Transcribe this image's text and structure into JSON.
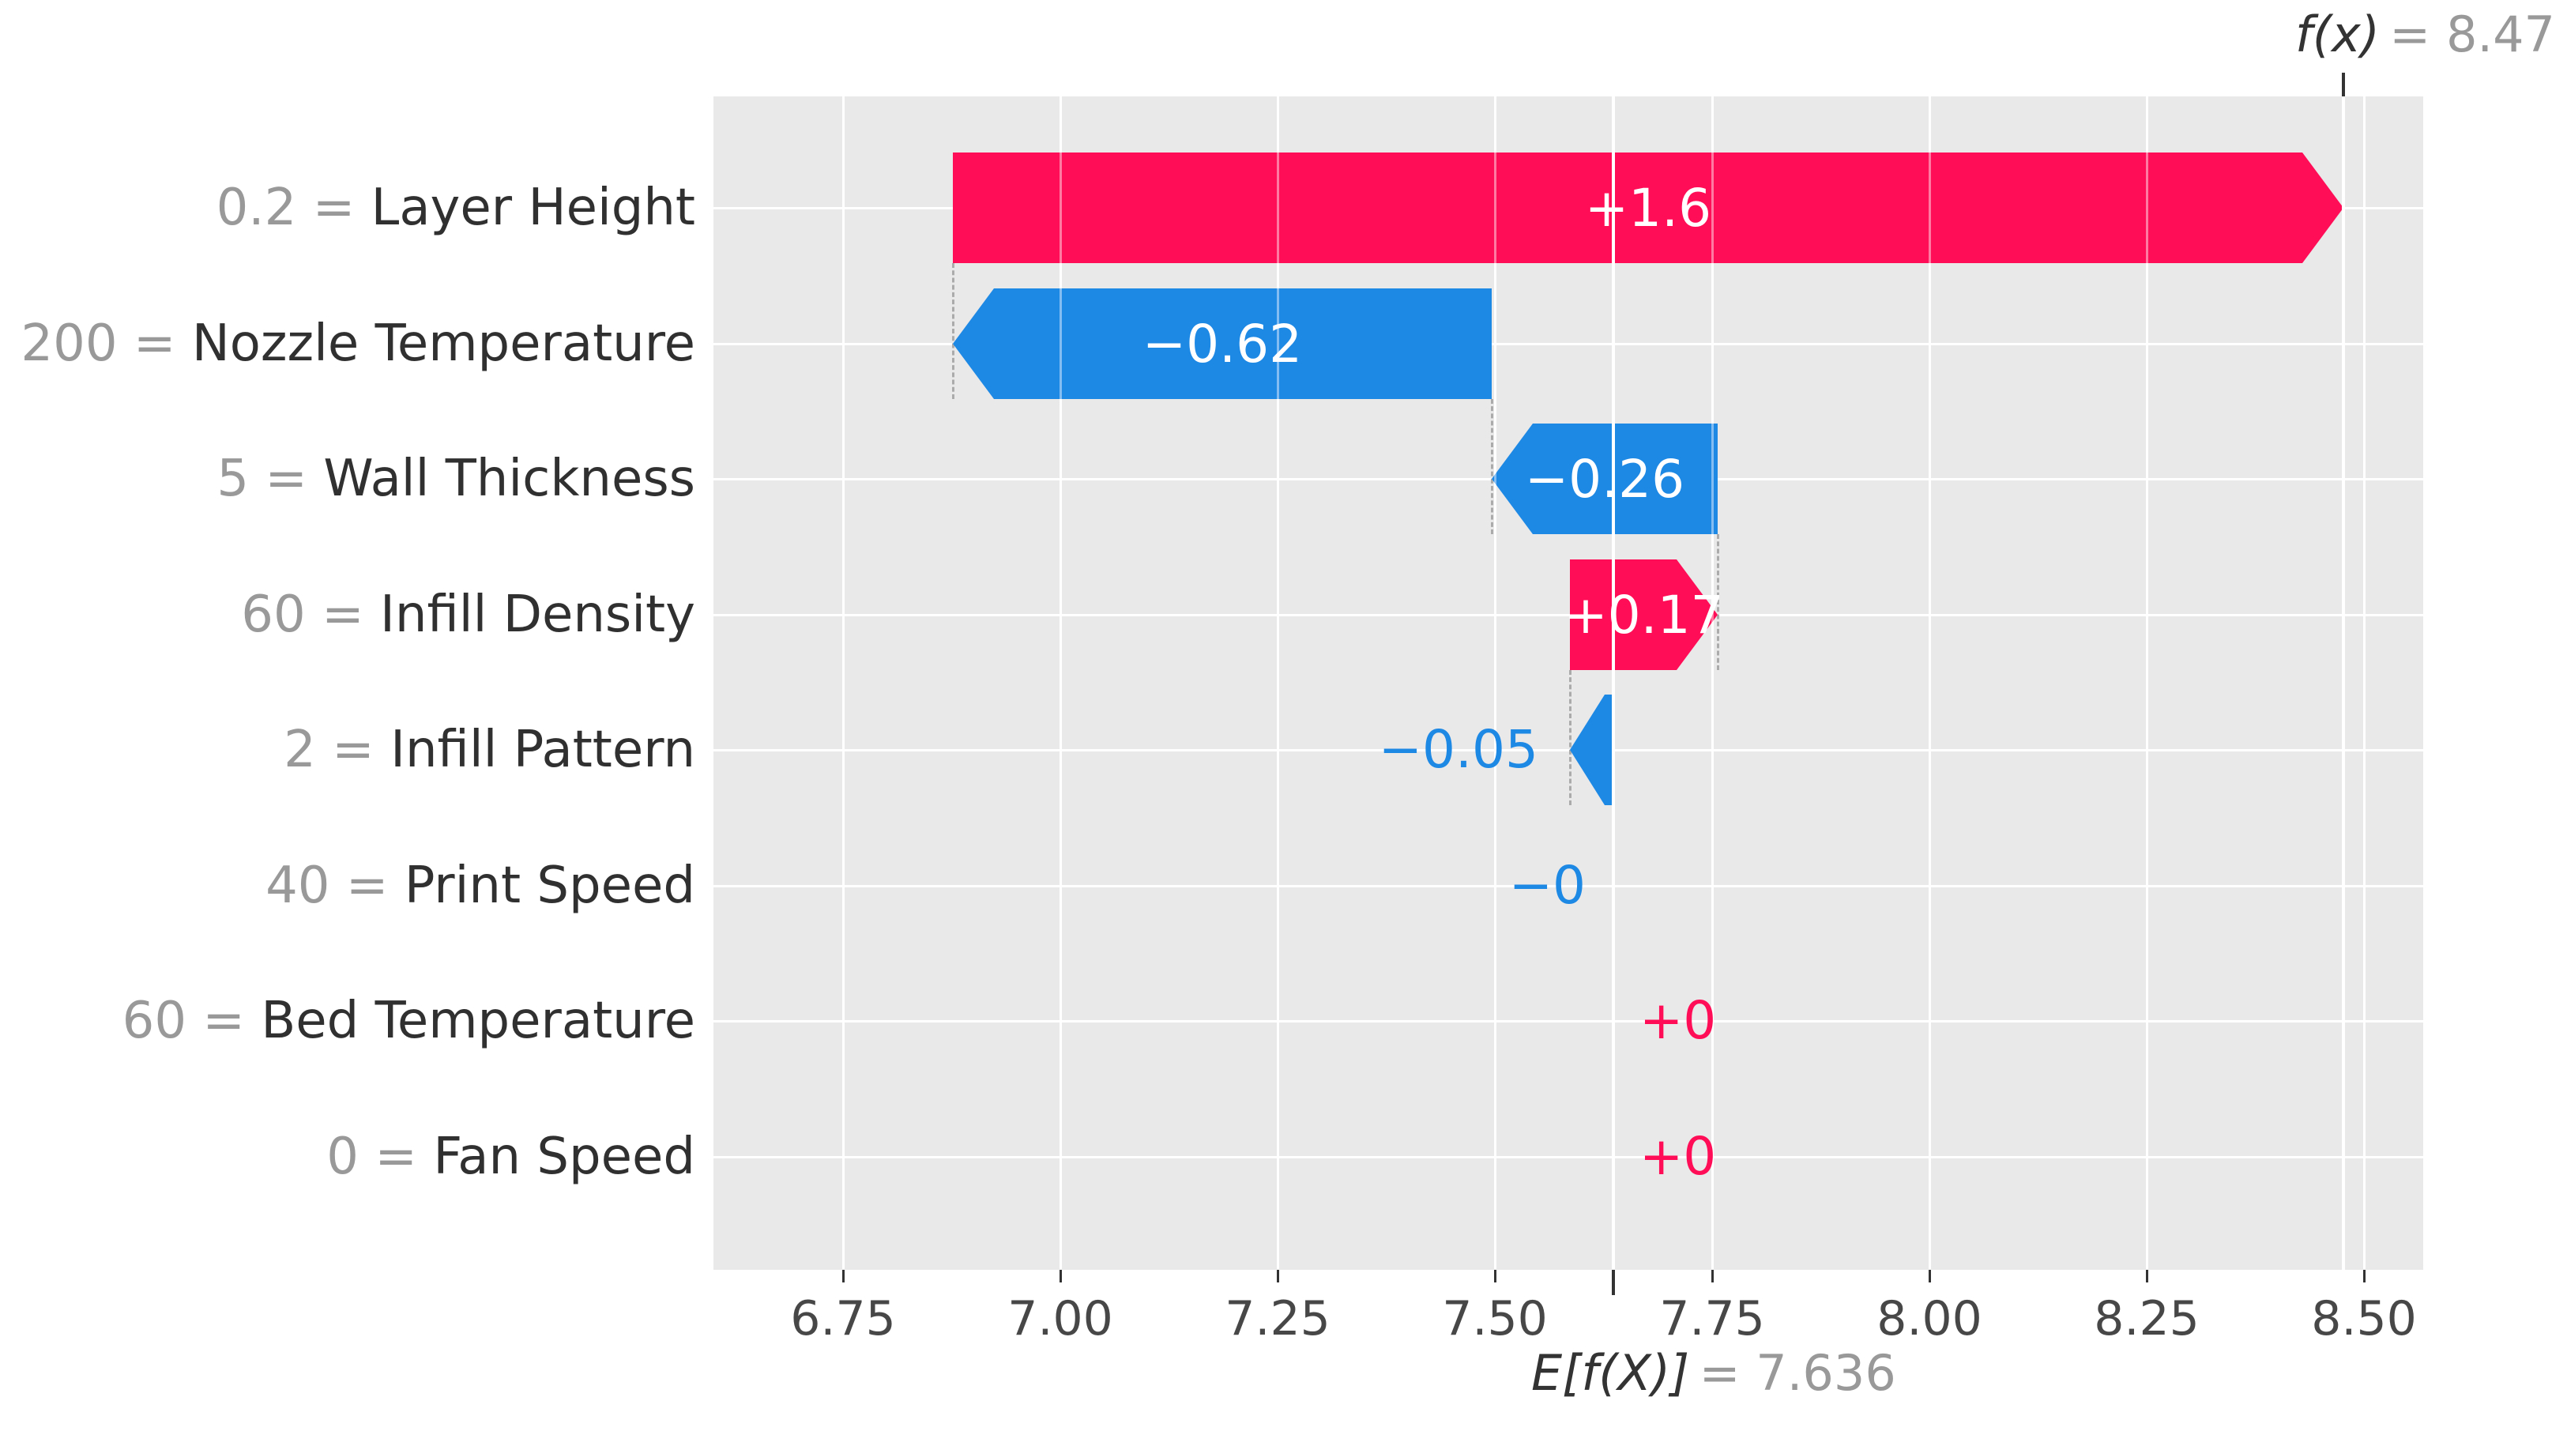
{
  "chart_data": {
    "type": "waterfall",
    "description": "SHAP waterfall plot of feature contributions",
    "fx_value": 8.47,
    "base_value": 7.636,
    "fx_annotation": {
      "lhs": "f(x)",
      "rhs": "= 8.47"
    },
    "base_annotation": {
      "lhs": "E[f(X)]",
      "rhs": "= 7.636"
    },
    "separator": " = ",
    "x_ticks": [
      6.75,
      7.0,
      7.25,
      7.5,
      7.75,
      8.0,
      8.25,
      8.5
    ],
    "x_tick_labels": [
      "6.75",
      "7.00",
      "7.25",
      "7.50",
      "7.75",
      "8.00",
      "8.25",
      "8.50"
    ],
    "grid": true,
    "legend": false,
    "rows": [
      {
        "feature": "Layer Height",
        "value_label": "0.2",
        "contribution": 1.6,
        "contribution_label": "+1.6",
        "direction": "positive"
      },
      {
        "feature": "Nozzle Temperature",
        "value_label": "200",
        "contribution": -0.62,
        "contribution_label": "−0.62",
        "direction": "negative"
      },
      {
        "feature": "Wall Thickness",
        "value_label": "5",
        "contribution": -0.26,
        "contribution_label": "−0.26",
        "direction": "negative"
      },
      {
        "feature": "Infill Density",
        "value_label": "60",
        "contribution": 0.17,
        "contribution_label": "+0.17",
        "direction": "positive"
      },
      {
        "feature": "Infill Pattern",
        "value_label": "2",
        "contribution": -0.05,
        "contribution_label": "−0.05",
        "direction": "negative"
      },
      {
        "feature": "Print Speed",
        "value_label": "40",
        "contribution": 0.0,
        "contribution_label": "−0",
        "direction": "negative"
      },
      {
        "feature": "Bed Temperature",
        "value_label": "60",
        "contribution": 0.0,
        "contribution_label": "+0",
        "direction": "positive"
      },
      {
        "feature": "Fan Speed",
        "value_label": "0",
        "contribution": 0.0,
        "contribution_label": "+0",
        "direction": "positive"
      }
    ],
    "colors": {
      "positive": "#ff0d57",
      "negative": "#1e88e5",
      "plot_background": "#e9e9e9",
      "gridline": "#ffffff",
      "connector": "#ababab",
      "dark_text": "#333333",
      "gray_text": "#999999",
      "tick_text": "#474747"
    }
  }
}
